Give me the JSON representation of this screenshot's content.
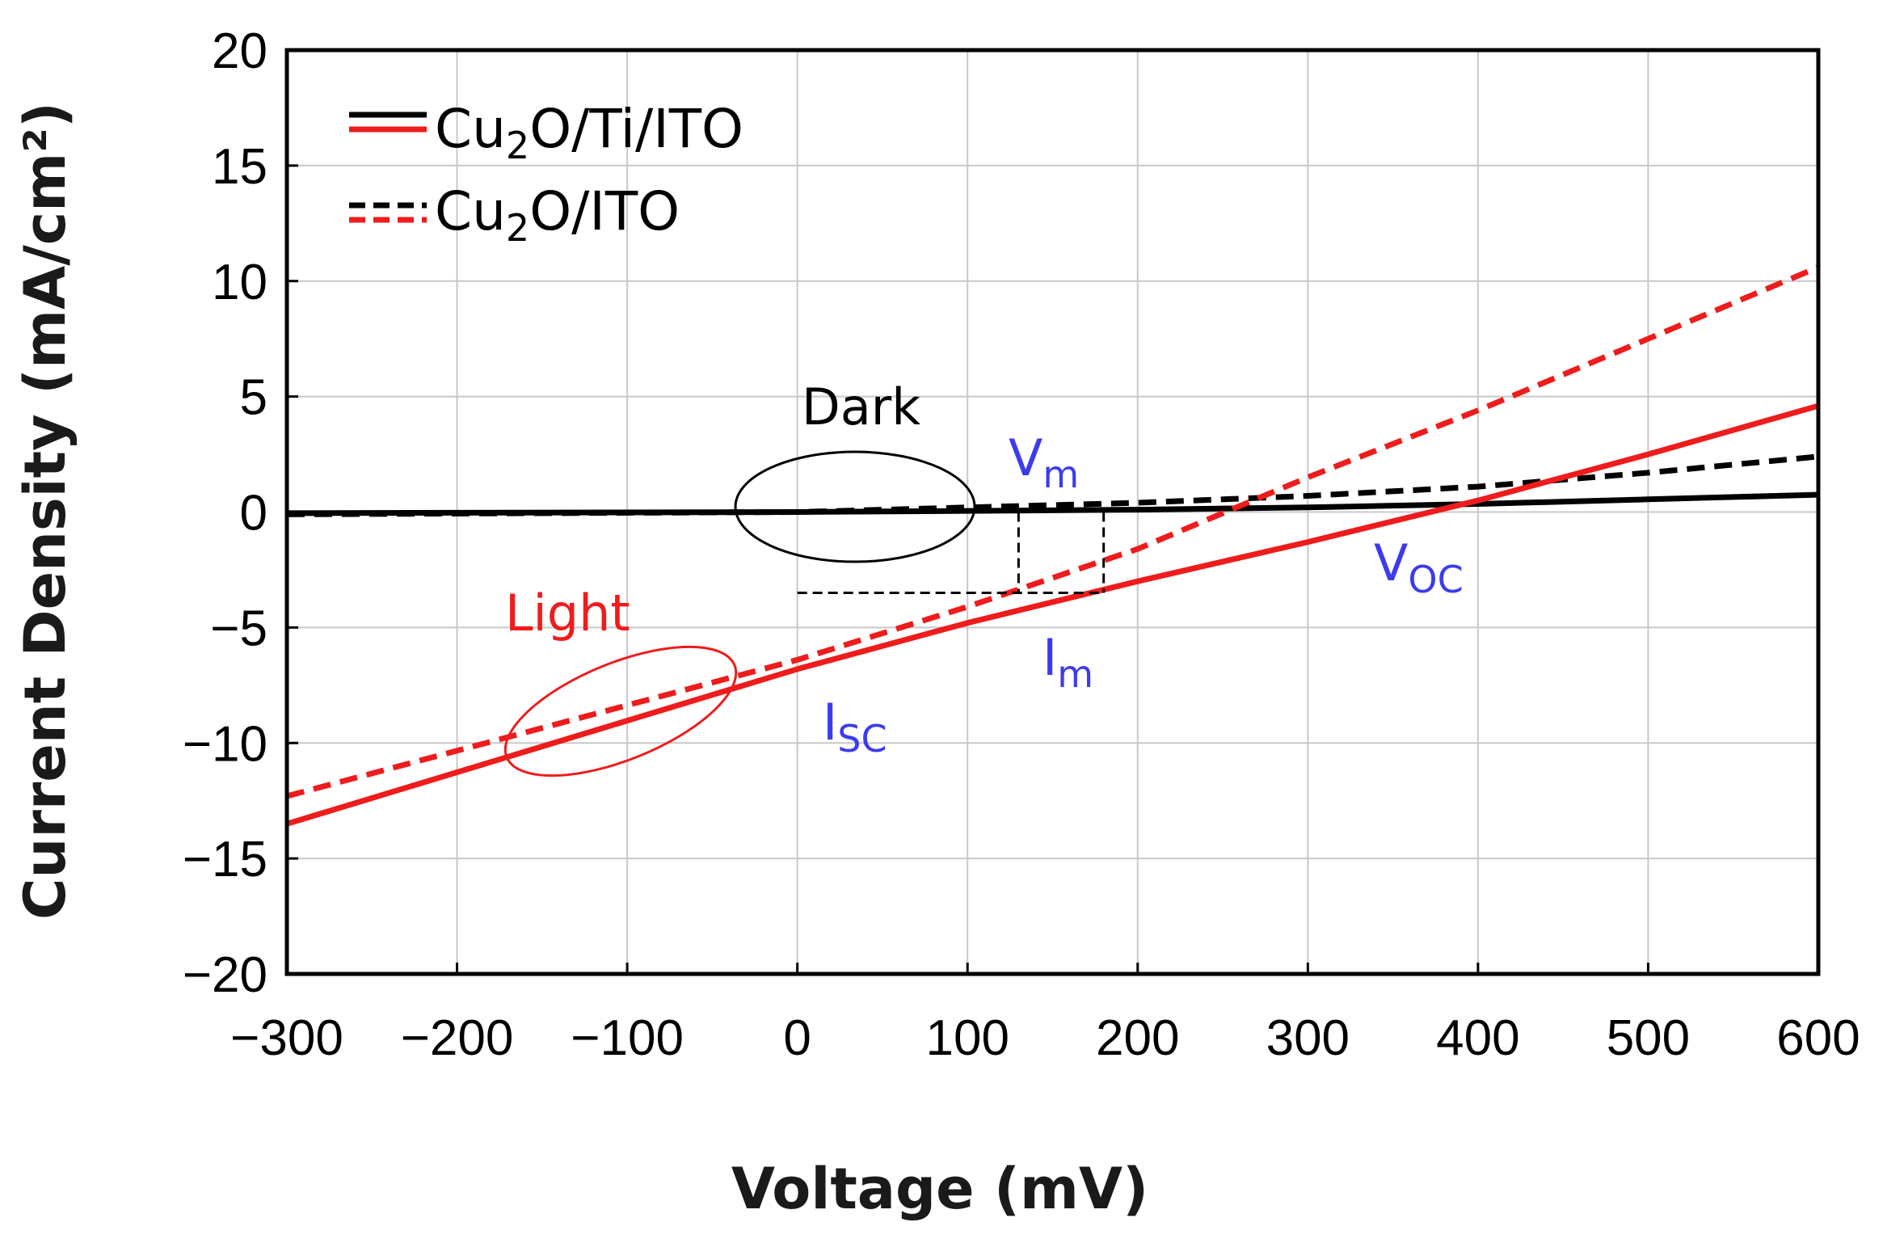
{
  "chart_data": {
    "type": "line",
    "title": "",
    "xlabel": "Voltage (mV)",
    "ylabel": "Current Density (mA/cm²)",
    "xlim": [
      -300,
      600
    ],
    "ylim": [
      -20,
      20
    ],
    "x_ticks": [
      -300,
      -200,
      -100,
      0,
      100,
      200,
      300,
      400,
      500,
      600
    ],
    "y_ticks": [
      -20,
      -15,
      -10,
      -5,
      0,
      5,
      10,
      15,
      20
    ],
    "x_tick_labels": [
      "−300",
      "−200",
      "−100",
      "0",
      "100",
      "200",
      "300",
      "400",
      "500",
      "600"
    ],
    "y_tick_labels": [
      "−20",
      "−15",
      "−10",
      "−5",
      "0",
      "5",
      "10",
      "15",
      "20"
    ],
    "grid": true,
    "legend": {
      "position": "top-left",
      "entries": [
        {
          "label_main": "Cu",
          "label_sub": "2",
          "label_rest": "O/Ti/ITO",
          "style": "solid"
        },
        {
          "label_main": "Cu",
          "label_sub": "2",
          "label_rest": "O/ITO",
          "style": "dashed"
        }
      ]
    },
    "series": [
      {
        "name": "Cu2O/Ti/ITO Dark",
        "color": "#000000",
        "style": "solid",
        "x": [
          -300,
          0,
          100,
          200,
          300,
          400,
          500,
          600
        ],
        "y": [
          -0.05,
          0.0,
          0.05,
          0.1,
          0.2,
          0.35,
          0.55,
          0.75
        ]
      },
      {
        "name": "Cu2O/ITO Dark",
        "color": "#000000",
        "style": "dashed",
        "x": [
          -300,
          0,
          100,
          200,
          300,
          400,
          500,
          600
        ],
        "y": [
          -0.1,
          0.0,
          0.2,
          0.4,
          0.7,
          1.1,
          1.7,
          2.4
        ]
      },
      {
        "name": "Cu2O/Ti/ITO Light",
        "color": "#ee1c1c",
        "style": "solid",
        "x": [
          -300,
          0,
          100,
          200,
          300,
          400,
          500,
          600
        ],
        "y": [
          -13.5,
          -6.8,
          -4.8,
          -3.0,
          -1.3,
          0.5,
          2.5,
          4.6
        ]
      },
      {
        "name": "Cu2O/ITO Light",
        "color": "#ee1c1c",
        "style": "dashed",
        "x": [
          -300,
          0,
          100,
          200,
          300,
          400,
          500,
          600
        ],
        "y": [
          -12.3,
          -6.4,
          -4.1,
          -1.6,
          1.5,
          4.4,
          7.5,
          10.6
        ]
      }
    ],
    "annotations": {
      "dark": "Dark",
      "light": "Light",
      "vm_main": "V",
      "vm_sub": "m",
      "voc_main": "V",
      "voc_sub": "OC",
      "im_main": "I",
      "im_sub": "m",
      "isc_main": "I",
      "isc_sub": "SC",
      "max_power_box": {
        "v1": 130,
        "v2": 180,
        "i": -3.5
      }
    },
    "colors": {
      "annotation_blue": "#3b3bf0",
      "light_red": "#ee1c1c",
      "dark_black": "#000000"
    }
  }
}
